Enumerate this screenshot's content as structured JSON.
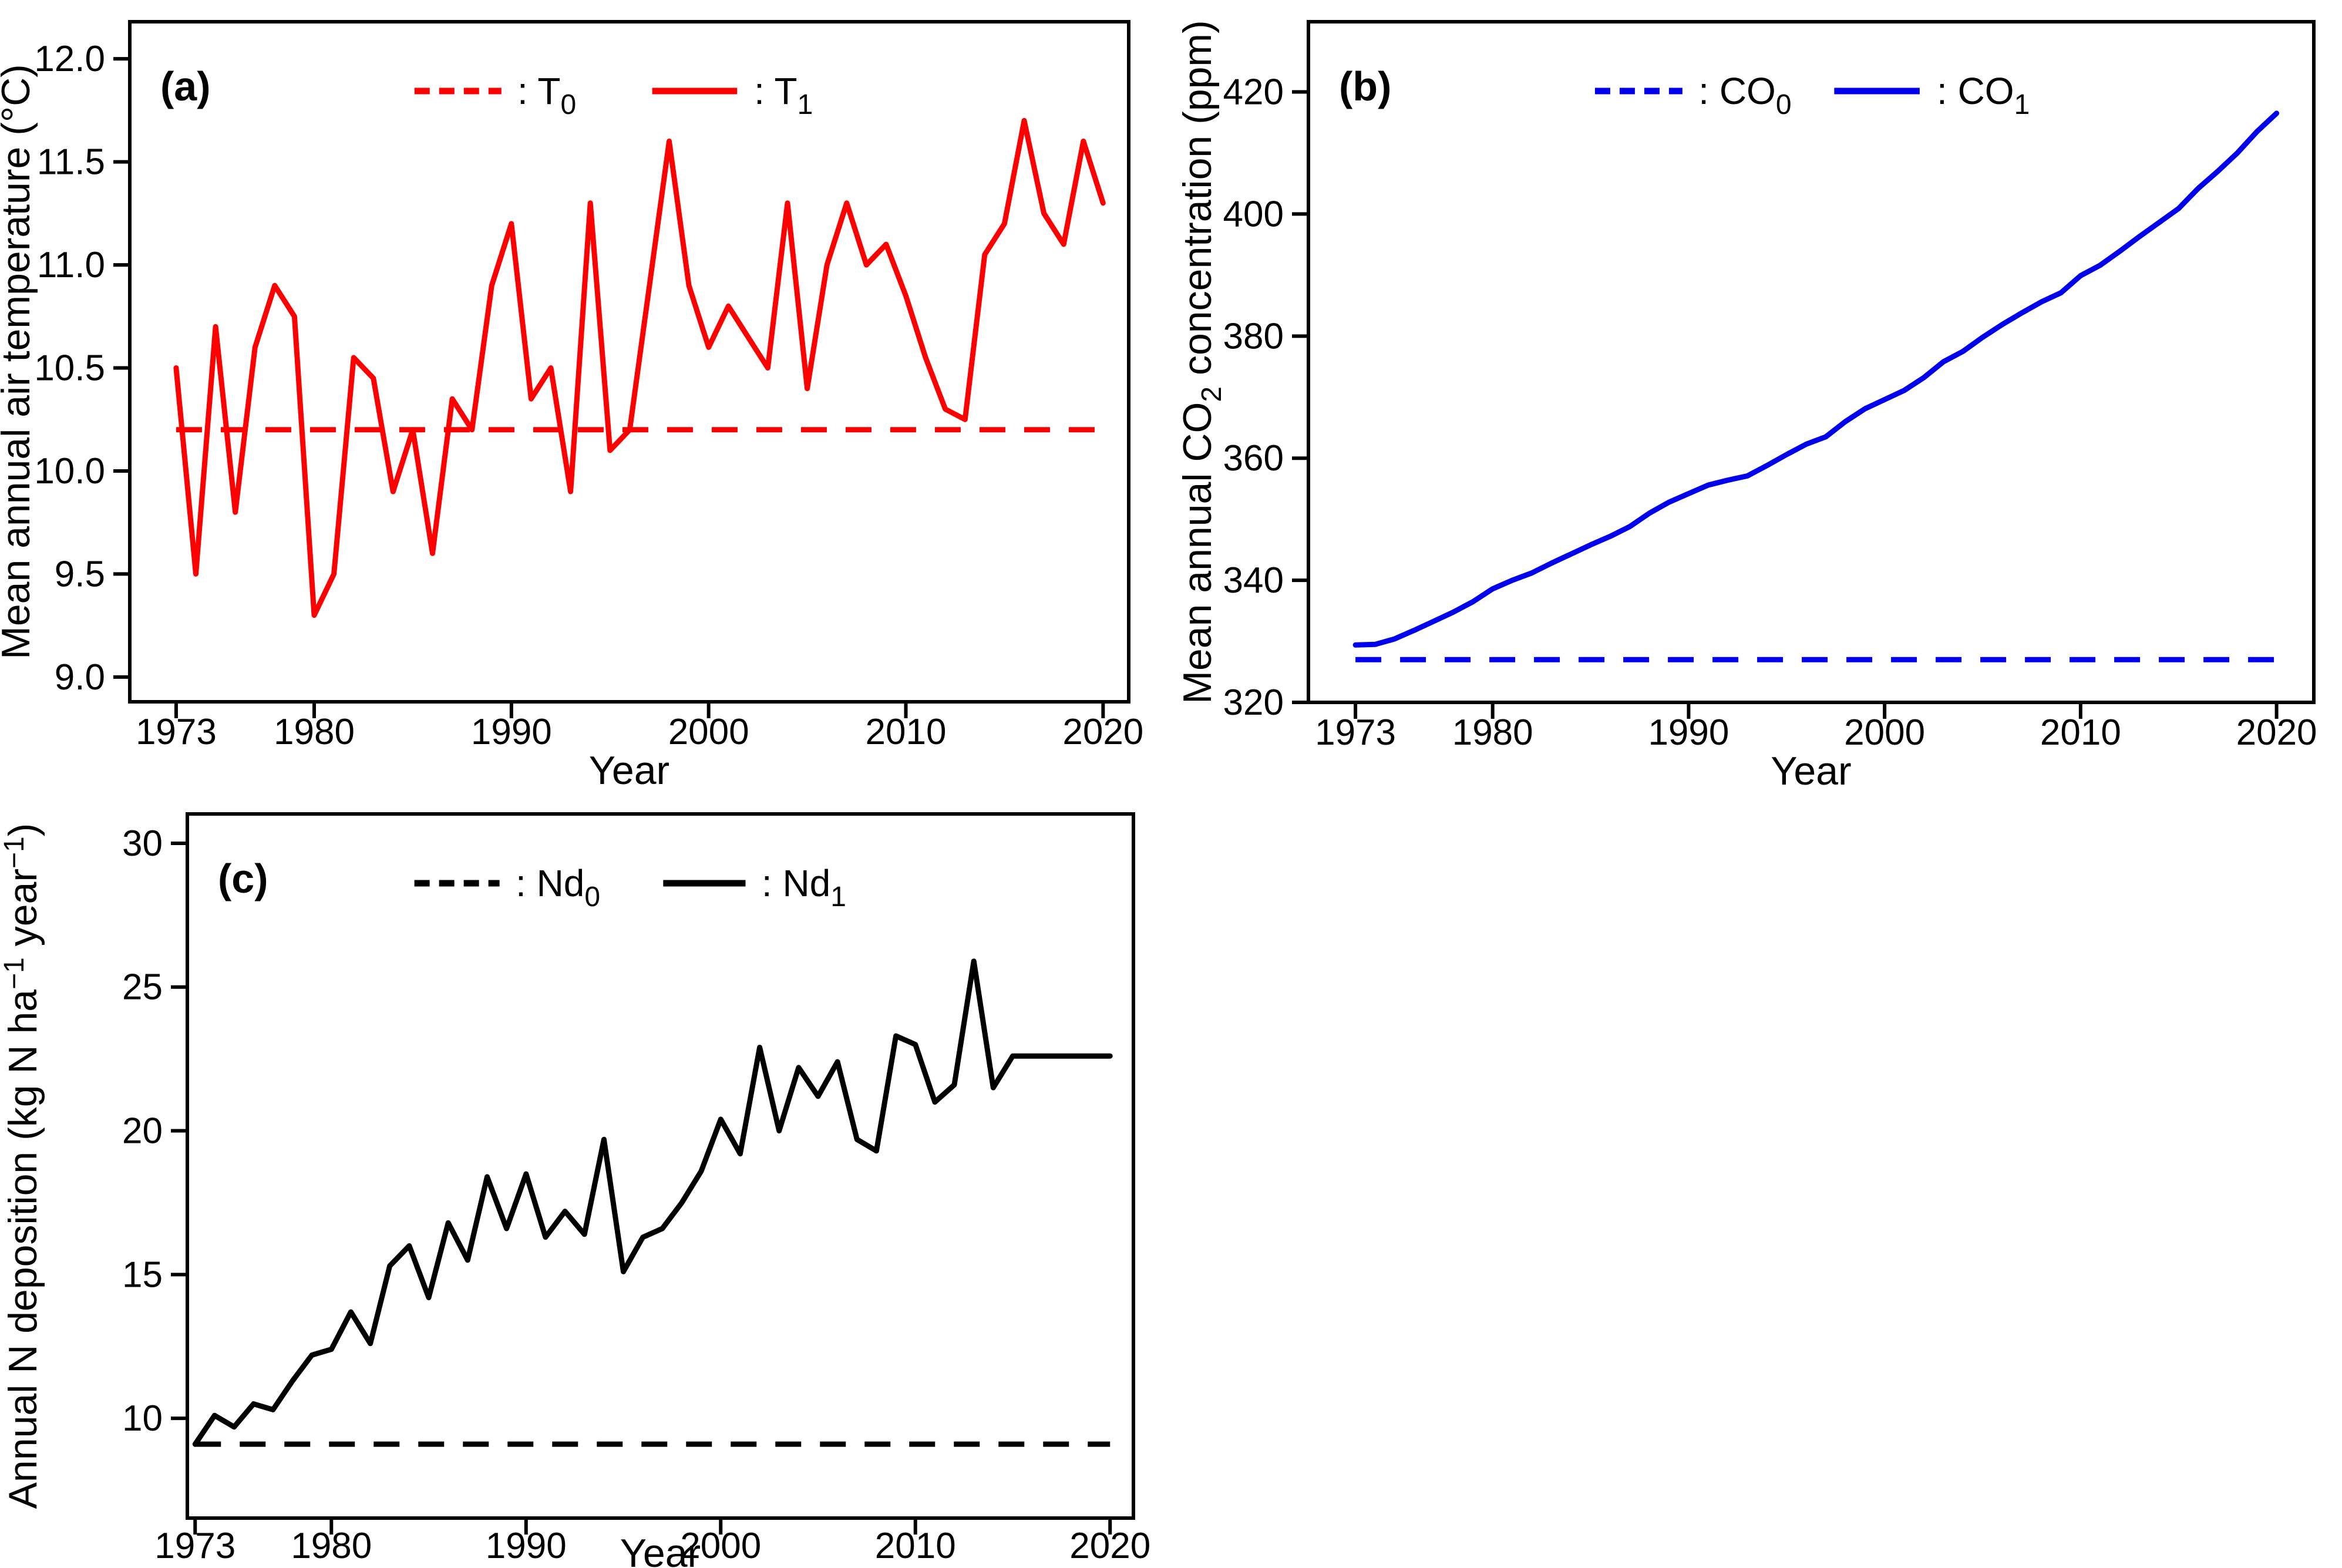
{
  "figure_label": "climate-driver-time-series",
  "colors": {
    "red": "#ff0000",
    "blue": "#0000ee",
    "black": "#000000",
    "background": "#ffffff"
  },
  "years": [
    1973,
    1974,
    1975,
    1976,
    1977,
    1978,
    1979,
    1980,
    1981,
    1982,
    1983,
    1984,
    1985,
    1986,
    1987,
    1988,
    1989,
    1990,
    1991,
    1992,
    1993,
    1994,
    1995,
    1996,
    1997,
    1998,
    1999,
    2000,
    2001,
    2002,
    2003,
    2004,
    2005,
    2006,
    2007,
    2008,
    2009,
    2010,
    2011,
    2012,
    2013,
    2014,
    2015,
    2016,
    2017,
    2018,
    2019,
    2020
  ],
  "chart_data": [
    {
      "type": "line",
      "panel": "(a)",
      "xlabel": "Year",
      "ylabel_parts": [
        {
          "t": "Mean annual air temperature (°C)"
        }
      ],
      "x_range": [
        1970.65,
        2021.3
      ],
      "y_range": [
        8.88,
        12.18
      ],
      "xticks": [
        1973,
        1980,
        1990,
        2000,
        2010,
        2020
      ],
      "yticks": [
        {
          "v": 9.0,
          "label": "9.0"
        },
        {
          "v": 9.5,
          "label": "9.5"
        },
        {
          "v": 10.0,
          "label": "10.0"
        },
        {
          "v": 10.5,
          "label": "10.5"
        },
        {
          "v": 11.0,
          "label": "11.0"
        },
        {
          "v": 11.5,
          "label": "11.5"
        },
        {
          "v": 12.0,
          "label": "12.0"
        }
      ],
      "grid": false,
      "legend_position": "top-center",
      "series": [
        {
          "name": "T0",
          "style": "dashed",
          "color": "#ff0000",
          "legend": [
            {
              "t": ": T"
            },
            {
              "t": "0",
              "sub": true
            }
          ],
          "constant": 10.2
        },
        {
          "name": "T1",
          "style": "solid",
          "color": "#ff0000",
          "legend": [
            {
              "t": ": T"
            },
            {
              "t": "1",
              "sub": true
            }
          ],
          "values": [
            10.5,
            9.5,
            10.7,
            9.8,
            10.6,
            10.9,
            10.75,
            9.3,
            9.5,
            10.55,
            10.45,
            9.9,
            10.2,
            9.6,
            10.35,
            10.2,
            10.9,
            11.2,
            10.35,
            10.5,
            9.9,
            11.3,
            10.1,
            10.2,
            10.9,
            11.6,
            10.9,
            10.6,
            10.8,
            10.65,
            10.5,
            11.3,
            10.4,
            11.0,
            11.3,
            11.0,
            11.1,
            10.85,
            10.55,
            10.3,
            10.25,
            11.05,
            11.2,
            11.7,
            11.25,
            11.1,
            11.6,
            11.3
          ]
        }
      ]
    },
    {
      "type": "line",
      "panel": "(b)",
      "xlabel": "Year",
      "ylabel_parts": [
        {
          "t": "Mean annual CO"
        },
        {
          "t": "2",
          "sub": true
        },
        {
          "t": " concentration (ppm)"
        }
      ],
      "x_range": [
        1970.6,
        2021.9
      ],
      "y_range": [
        320,
        431.5
      ],
      "xticks": [
        1973,
        1980,
        1990,
        2000,
        2010,
        2020
      ],
      "yticks": [
        {
          "v": 320,
          "label": "320"
        },
        {
          "v": 340,
          "label": "340"
        },
        {
          "v": 360,
          "label": "360"
        },
        {
          "v": 380,
          "label": "380"
        },
        {
          "v": 400,
          "label": "400"
        },
        {
          "v": 420,
          "label": "420"
        }
      ],
      "grid": false,
      "legend_position": "top-center",
      "series": [
        {
          "name": "CO0",
          "style": "dashed",
          "color": "#0000ee",
          "legend": [
            {
              "t": ": CO"
            },
            {
              "t": "0",
              "sub": true
            }
          ],
          "constant": 327.0
        },
        {
          "name": "CO1",
          "style": "solid",
          "color": "#0000ee",
          "values": [
            329.4,
            329.5,
            330.4,
            331.8,
            333.3,
            334.8,
            336.5,
            338.6,
            340.0,
            341.2,
            342.8,
            344.3,
            345.8,
            347.2,
            348.8,
            351.0,
            352.8,
            354.2,
            355.6,
            356.4,
            357.1,
            358.8,
            360.6,
            362.3,
            363.5,
            366.0,
            368.1,
            369.6,
            371.1,
            373.2,
            375.8,
            377.5,
            379.8,
            381.9,
            383.8,
            385.6,
            387.1,
            389.9,
            391.6,
            393.9,
            396.3,
            398.6,
            400.9,
            404.2,
            407.0,
            410.0,
            413.5,
            416.5
          ],
          "legend": [
            {
              "t": ": CO"
            },
            {
              "t": "1",
              "sub": true
            }
          ]
        }
      ]
    },
    {
      "type": "line",
      "panel": "(c)",
      "xlabel": "Year",
      "ylabel_parts": [
        {
          "t": "Annual N deposition (kg N ha"
        },
        {
          "t": "−1",
          "sup": true
        },
        {
          "t": " year"
        },
        {
          "t": "−1",
          "sup": true
        },
        {
          "t": ")"
        }
      ],
      "x_range": [
        1972.6,
        2021.2
      ],
      "y_range": [
        6.53,
        31.02
      ],
      "xticks": [
        1973,
        1980,
        1990,
        2000,
        2010,
        2020
      ],
      "yticks": [
        {
          "v": 10,
          "label": "10"
        },
        {
          "v": 15,
          "label": "15"
        },
        {
          "v": 20,
          "label": "20"
        },
        {
          "v": 25,
          "label": "25"
        },
        {
          "v": 30,
          "label": "30"
        }
      ],
      "grid": false,
      "legend_position": "top-center",
      "series": [
        {
          "name": "Nd0",
          "style": "dashed",
          "color": "#000000",
          "legend": [
            {
              "t": ": Nd"
            },
            {
              "t": "0",
              "sub": true
            }
          ],
          "constant": 9.1
        },
        {
          "name": "Nd1",
          "style": "solid",
          "color": "#000000",
          "legend": [
            {
              "t": ": Nd"
            },
            {
              "t": "1",
              "sub": true
            }
          ],
          "values": [
            9.1,
            10.1,
            9.7,
            10.5,
            10.3,
            11.3,
            12.2,
            12.4,
            13.7,
            12.6,
            15.3,
            16.0,
            14.2,
            16.8,
            15.5,
            18.4,
            16.6,
            18.5,
            16.3,
            17.2,
            16.4,
            19.7,
            15.1,
            16.3,
            16.6,
            17.5,
            18.6,
            20.4,
            19.2,
            22.9,
            20.0,
            22.2,
            21.2,
            22.4,
            19.7,
            19.3,
            23.3,
            23.0,
            21.0,
            21.6,
            25.9,
            21.5,
            22.6,
            22.6,
            22.6,
            22.6,
            22.6,
            22.6
          ]
        }
      ]
    }
  ]
}
